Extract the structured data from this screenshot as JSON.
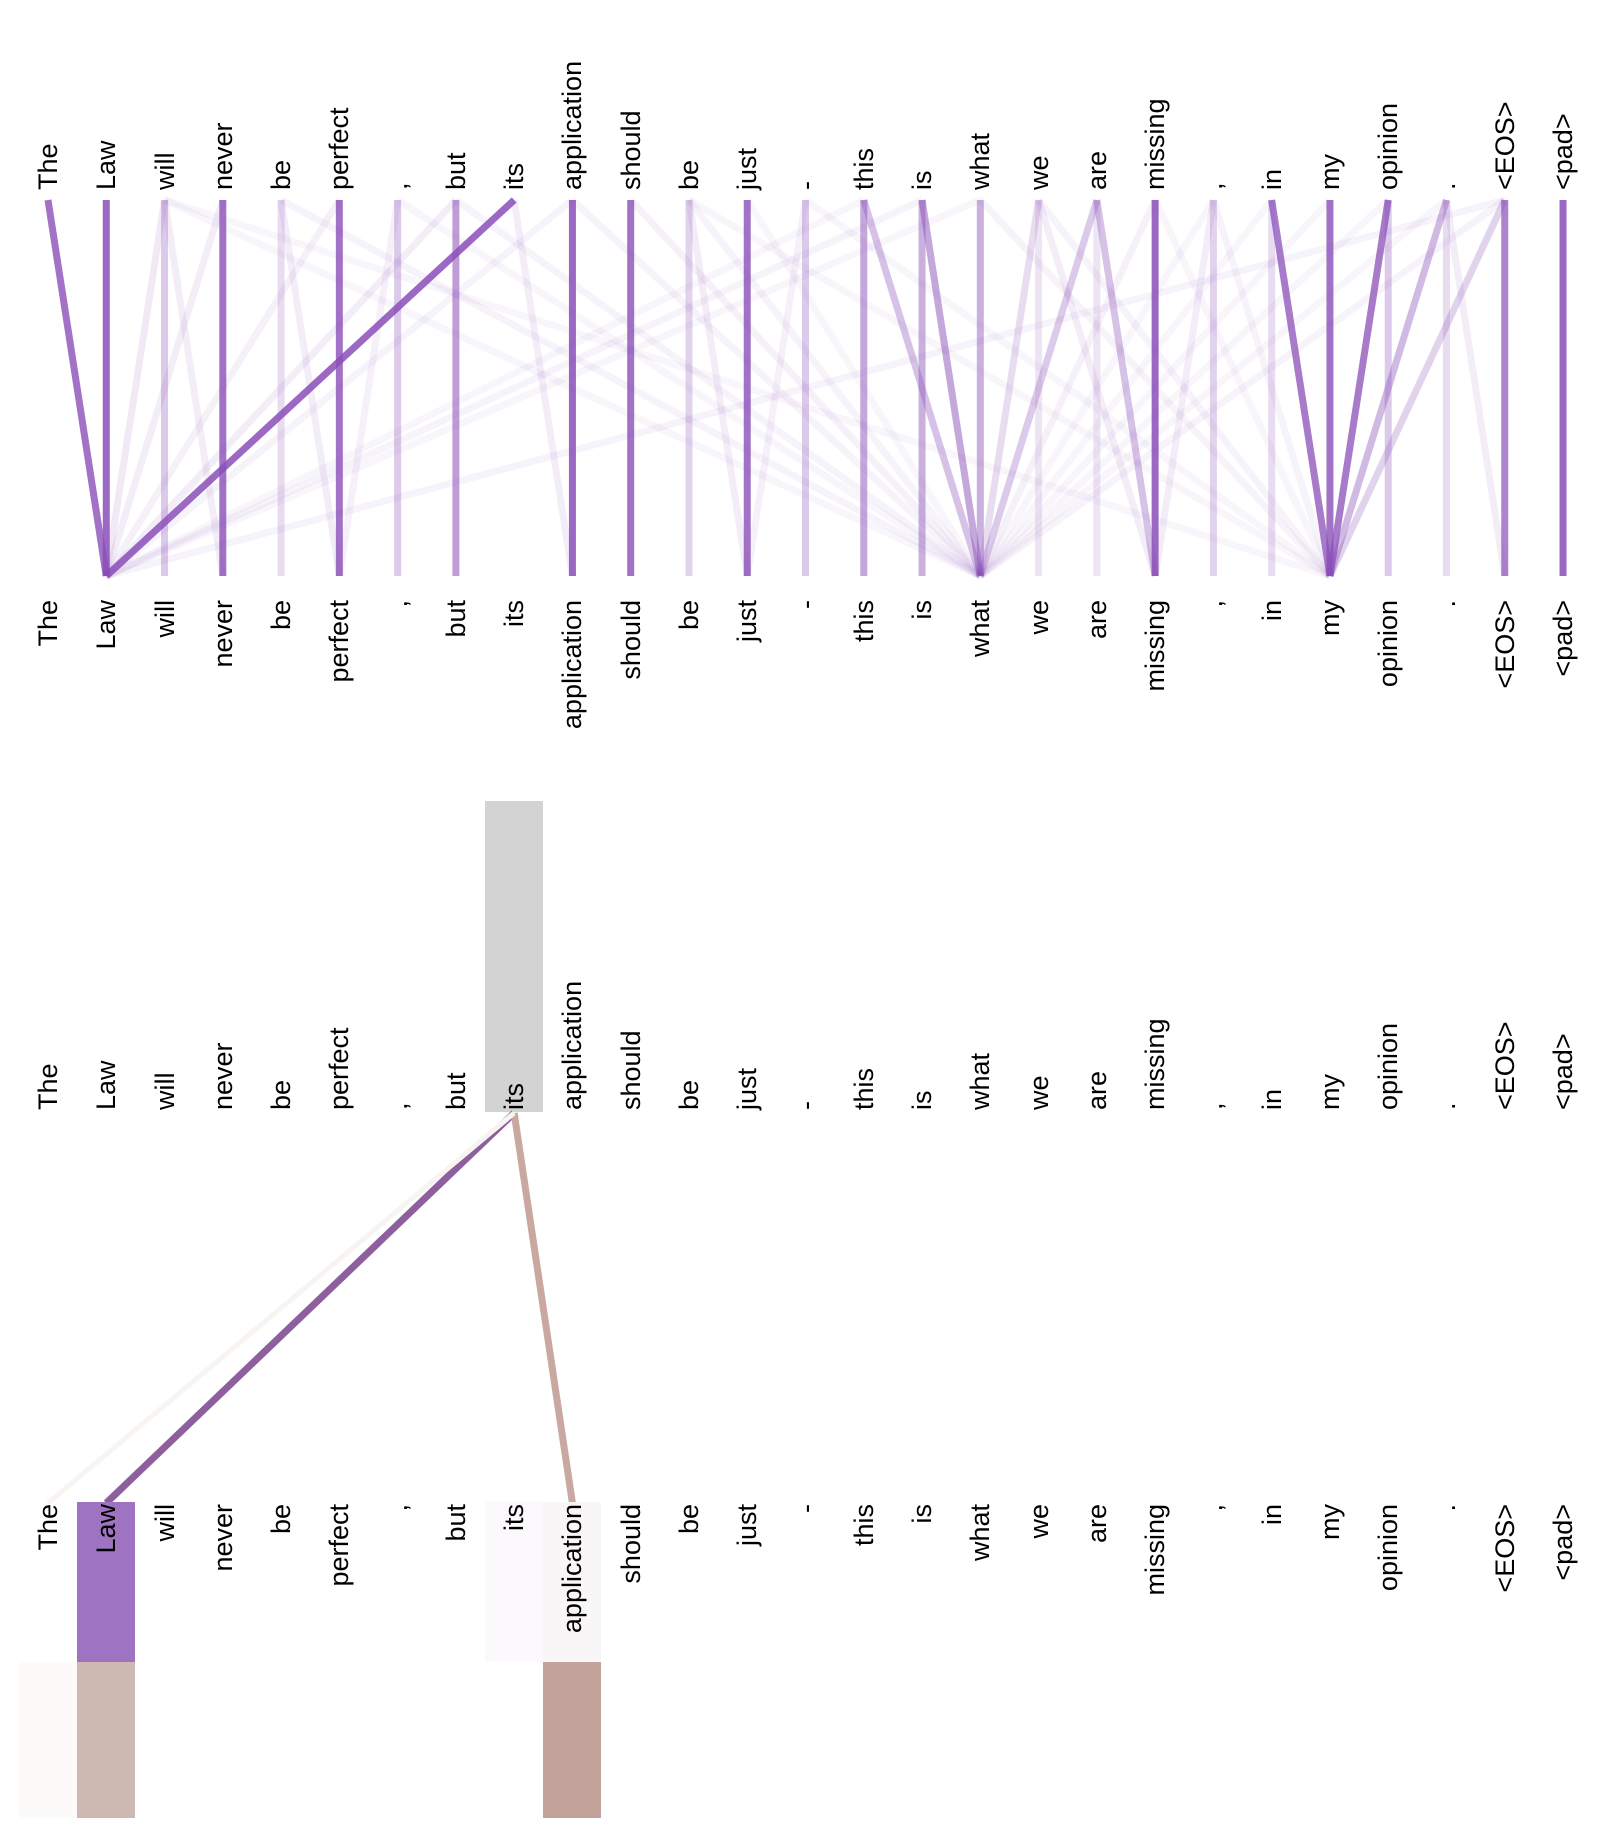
{
  "tokens": [
    "The",
    "Law",
    "will",
    "never",
    "be",
    "perfect",
    ",",
    "but",
    "its",
    "application",
    "should",
    "be",
    "just",
    "-",
    "this",
    "is",
    "what",
    "we",
    "are",
    "missing",
    ",",
    "in",
    "my",
    "opinion",
    ".",
    "<EOS>",
    "<pad>"
  ],
  "top_panel": {
    "line_color": "#8a4fb8",
    "edges": [
      [
        0,
        1,
        0.8
      ],
      [
        1,
        1,
        0.85
      ],
      [
        2,
        2,
        0.3
      ],
      [
        3,
        3,
        0.8
      ],
      [
        4,
        4,
        0.2
      ],
      [
        5,
        5,
        0.8
      ],
      [
        6,
        6,
        0.3
      ],
      [
        7,
        7,
        0.55
      ],
      [
        8,
        1,
        0.85
      ],
      [
        9,
        9,
        0.85
      ],
      [
        10,
        10,
        0.8
      ],
      [
        11,
        11,
        0.25
      ],
      [
        12,
        12,
        0.8
      ],
      [
        13,
        13,
        0.3
      ],
      [
        14,
        14,
        0.5
      ],
      [
        15,
        15,
        0.45
      ],
      [
        16,
        16,
        0.45
      ],
      [
        17,
        17,
        0.15
      ],
      [
        18,
        18,
        0.15
      ],
      [
        19,
        19,
        0.85
      ],
      [
        20,
        20,
        0.25
      ],
      [
        21,
        21,
        0.2
      ],
      [
        22,
        22,
        0.8
      ],
      [
        23,
        23,
        0.3
      ],
      [
        24,
        24,
        0.2
      ],
      [
        25,
        25,
        0.7
      ],
      [
        26,
        26,
        0.85
      ],
      [
        21,
        22,
        0.75
      ],
      [
        23,
        22,
        0.75
      ],
      [
        24,
        22,
        0.4
      ],
      [
        25,
        22,
        0.25
      ],
      [
        15,
        16,
        0.5
      ],
      [
        14,
        16,
        0.35
      ],
      [
        17,
        16,
        0.2
      ],
      [
        18,
        16,
        0.3
      ],
      [
        18,
        19,
        0.35
      ],
      [
        2,
        1,
        0.12
      ],
      [
        2,
        3,
        0.1
      ],
      [
        2,
        16,
        0.06
      ],
      [
        2,
        22,
        0.05
      ],
      [
        3,
        1,
        0.1
      ],
      [
        4,
        5,
        0.1
      ],
      [
        4,
        16,
        0.07
      ],
      [
        5,
        1,
        0.08
      ],
      [
        6,
        5,
        0.08
      ],
      [
        6,
        16,
        0.06
      ],
      [
        7,
        1,
        0.1
      ],
      [
        7,
        16,
        0.07
      ],
      [
        8,
        9,
        0.1
      ],
      [
        9,
        1,
        0.07
      ],
      [
        9,
        16,
        0.07
      ],
      [
        10,
        16,
        0.08
      ],
      [
        11,
        12,
        0.1
      ],
      [
        11,
        16,
        0.07
      ],
      [
        11,
        22,
        0.05
      ],
      [
        12,
        16,
        0.06
      ],
      [
        13,
        12,
        0.08
      ],
      [
        13,
        22,
        0.06
      ],
      [
        14,
        1,
        0.06
      ],
      [
        15,
        1,
        0.07
      ],
      [
        16,
        1,
        0.06
      ],
      [
        16,
        22,
        0.07
      ],
      [
        17,
        19,
        0.1
      ],
      [
        17,
        22,
        0.07
      ],
      [
        19,
        16,
        0.08
      ],
      [
        19,
        22,
        0.06
      ],
      [
        20,
        19,
        0.1
      ],
      [
        20,
        16,
        0.06
      ],
      [
        20,
        22,
        0.07
      ],
      [
        21,
        16,
        0.05
      ],
      [
        22,
        16,
        0.06
      ],
      [
        23,
        16,
        0.06
      ],
      [
        24,
        25,
        0.1
      ],
      [
        24,
        16,
        0.05
      ],
      [
        25,
        1,
        0.07
      ],
      [
        25,
        16,
        0.07
      ]
    ]
  },
  "bottom_panel": {
    "selected_token": "its",
    "selected_index": 8,
    "selected_highlight_color": "#d3d3d3",
    "links": [
      {
        "to": 1,
        "color": "#8d5f9d",
        "width": 7
      },
      {
        "to": 9,
        "color": "#c9a8a2",
        "width": 7
      },
      {
        "to": 0,
        "color": "#f8f4f2",
        "width": 5
      }
    ],
    "token_highlights": [
      {
        "index": 1,
        "color": "#9e74c2"
      },
      {
        "index": 8,
        "color": "#fbf9fb"
      },
      {
        "index": 9,
        "color": "#f9f6f7"
      }
    ],
    "weight_bars": [
      {
        "index": 0,
        "color": "#fdfbfa"
      },
      {
        "index": 1,
        "color": "#cdb8b2"
      },
      {
        "index": 9,
        "color": "#c2a29a"
      }
    ]
  }
}
